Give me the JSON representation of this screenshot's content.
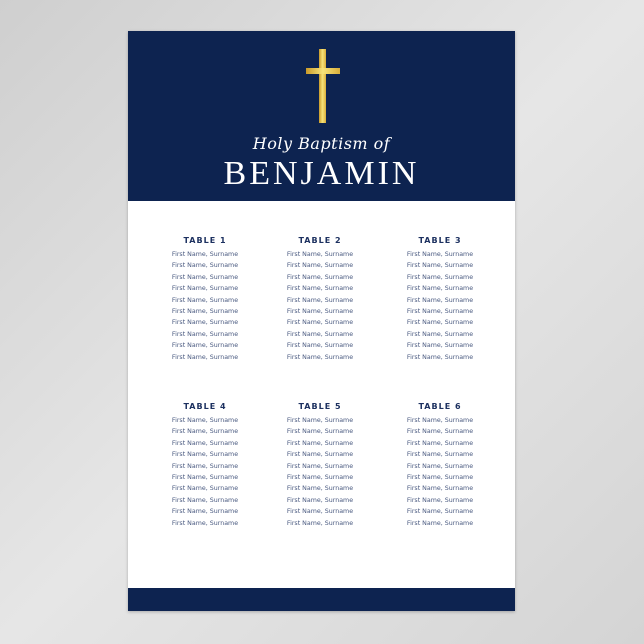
{
  "header": {
    "subtitle": "Holy Baptism of",
    "name": "BENJAMIN",
    "icon": "gold-cross-icon"
  },
  "colors": {
    "navy": "#0d2350",
    "gold": "#e8c95a",
    "text": "#1d3160"
  },
  "tables": [
    {
      "title": "TABLE 1",
      "guests": [
        "First Name, Surname",
        "First Name, Surname",
        "First Name, Surname",
        "First Name, Surname",
        "First Name, Surname",
        "First Name, Surname",
        "First Name, Surname",
        "First Name, Surname",
        "First Name, Surname",
        "First Name, Surname"
      ]
    },
    {
      "title": "TABLE 2",
      "guests": [
        "First Name, Surname",
        "First Name, Surname",
        "First Name, Surname",
        "First Name, Surname",
        "First Name, Surname",
        "First Name, Surname",
        "First Name, Surname",
        "First Name, Surname",
        "First Name, Surname",
        "First Name, Surname"
      ]
    },
    {
      "title": "TABLE 3",
      "guests": [
        "First Name, Surname",
        "First Name, Surname",
        "First Name, Surname",
        "First Name, Surname",
        "First Name, Surname",
        "First Name, Surname",
        "First Name, Surname",
        "First Name, Surname",
        "First Name, Surname",
        "First Name, Surname"
      ]
    },
    {
      "title": "TABLE 4",
      "guests": [
        "First Name, Surname",
        "First Name, Surname",
        "First Name, Surname",
        "First Name, Surname",
        "First Name, Surname",
        "First Name, Surname",
        "First Name, Surname",
        "First Name, Surname",
        "First Name, Surname",
        "First Name, Surname"
      ]
    },
    {
      "title": "TABLE 5",
      "guests": [
        "First Name, Surname",
        "First Name, Surname",
        "First Name, Surname",
        "First Name, Surname",
        "First Name, Surname",
        "First Name, Surname",
        "First Name, Surname",
        "First Name, Surname",
        "First Name, Surname",
        "First Name, Surname"
      ]
    },
    {
      "title": "TABLE 6",
      "guests": [
        "First Name, Surname",
        "First Name, Surname",
        "First Name, Surname",
        "First Name, Surname",
        "First Name, Surname",
        "First Name, Surname",
        "First Name, Surname",
        "First Name, Surname",
        "First Name, Surname",
        "First Name, Surname"
      ]
    }
  ]
}
